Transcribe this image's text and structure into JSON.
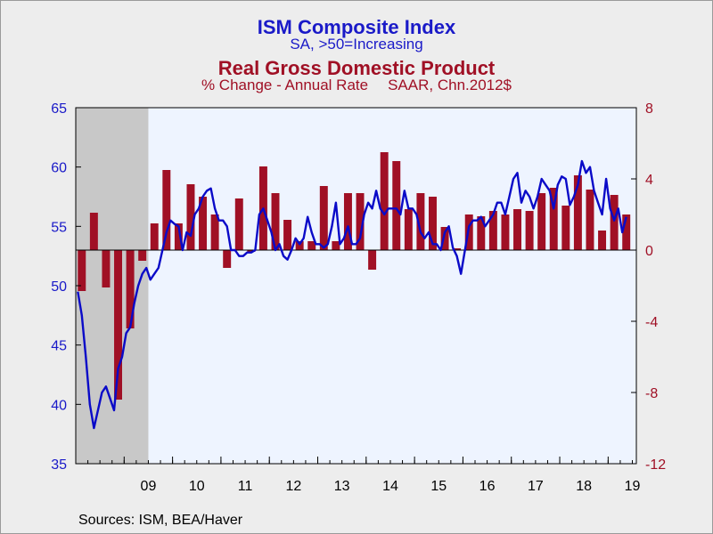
{
  "titles": {
    "ism_title": "ISM Composite Index",
    "ism_subtitle": "SA, >50=Increasing",
    "gdp_title": "Real Gross Domestic Product",
    "gdp_subtitle_left": "% Change - Annual Rate",
    "gdp_subtitle_right": "SAAR, Chn.2012$"
  },
  "source": "Sources:  ISM, BEA/Haver",
  "colors": {
    "ism": "#0a0ac8",
    "gdp": "#a01025",
    "left_axis": "#1a1ac8",
    "right_axis": "#a01025",
    "plot_bg": "#eef4ff",
    "recession": "#c8c8c8"
  },
  "chart_data": {
    "type": "bar",
    "combo": "bar + line (dual axis)",
    "x_tick_labels": [
      "09",
      "10",
      "11",
      "12",
      "13",
      "14",
      "15",
      "16",
      "17",
      "18",
      "19"
    ],
    "x_range": [
      2008.0,
      2019.583
    ],
    "left_axis": {
      "series": "ISM Composite Index",
      "ticks": [
        35,
        40,
        45,
        50,
        55,
        60,
        65
      ],
      "range": [
        35,
        65
      ]
    },
    "right_axis": {
      "series": "Real Gross Domestic Product",
      "ticks": [
        -12,
        -8,
        -4,
        0,
        4,
        8
      ],
      "range": [
        -12,
        8
      ]
    },
    "recession": {
      "start": 2008.0,
      "end": 2009.5
    },
    "gdp_bars": {
      "name": "Real Gross Domestic Product",
      "quarters": [
        "2008Q1",
        "2008Q2",
        "2008Q3",
        "2008Q4",
        "2009Q1",
        "2009Q2",
        "2009Q3",
        "2009Q4",
        "2010Q1",
        "2010Q2",
        "2010Q3",
        "2010Q4",
        "2011Q1",
        "2011Q2",
        "2011Q3",
        "2011Q4",
        "2012Q1",
        "2012Q2",
        "2012Q3",
        "2012Q4",
        "2013Q1",
        "2013Q2",
        "2013Q3",
        "2013Q4",
        "2014Q1",
        "2014Q2",
        "2014Q3",
        "2014Q4",
        "2015Q1",
        "2015Q2",
        "2015Q3",
        "2015Q4",
        "2016Q1",
        "2016Q2",
        "2016Q3",
        "2016Q4",
        "2017Q1",
        "2017Q2",
        "2017Q3",
        "2017Q4",
        "2018Q1",
        "2018Q2",
        "2018Q3",
        "2018Q4",
        "2019Q1",
        "2019Q2"
      ],
      "values": [
        -2.3,
        2.1,
        -2.1,
        -8.4,
        -4.4,
        -0.6,
        1.5,
        4.5,
        1.5,
        3.7,
        3.0,
        2.0,
        -1.0,
        2.9,
        -0.1,
        4.7,
        3.2,
        1.7,
        0.5,
        0.5,
        3.6,
        0.5,
        3.2,
        3.2,
        -1.1,
        5.5,
        5.0,
        2.3,
        3.2,
        3.0,
        1.3,
        0.1,
        2.0,
        1.9,
        2.2,
        2.0,
        2.3,
        2.2,
        3.2,
        3.5,
        2.5,
        4.2,
        3.4,
        1.1,
        3.1,
        2.0
      ]
    },
    "ism_line": {
      "name": "ISM Composite Index",
      "start": "2008-01",
      "values": [
        49.5,
        47.5,
        44.0,
        40.0,
        38.0,
        39.5,
        41.0,
        41.5,
        40.5,
        39.5,
        43.0,
        44.0,
        46.0,
        46.5,
        48.5,
        50.0,
        51.0,
        51.5,
        50.5,
        51.0,
        51.5,
        53.0,
        54.5,
        55.5,
        55.2,
        55.0,
        53.0,
        54.5,
        54.2,
        56.0,
        56.5,
        57.5,
        58.0,
        58.2,
        56.5,
        55.5,
        55.5,
        55.0,
        53.0,
        53.0,
        52.5,
        52.5,
        52.8,
        52.8,
        53.0,
        56.0,
        56.5,
        55.5,
        54.5,
        53.0,
        53.5,
        52.5,
        52.2,
        53.0,
        54.0,
        53.5,
        54.0,
        55.8,
        54.5,
        53.5,
        53.5,
        53.2,
        53.5,
        55.0,
        57.0,
        53.5,
        54.0,
        55.0,
        53.5,
        53.5,
        54.0,
        56.0,
        57.0,
        56.5,
        58.0,
        56.5,
        56.0,
        56.5,
        56.5,
        56.5,
        56.0,
        58.0,
        56.5,
        56.5,
        56.0,
        54.5,
        54.0,
        54.5,
        53.5,
        53.5,
        53.0,
        54.5,
        55.0,
        53.2,
        52.5,
        51.0,
        53.0,
        55.0,
        55.5,
        55.5,
        55.8,
        55.0,
        55.5,
        56.0,
        57.0,
        57.0,
        56.0,
        57.5,
        59.0,
        59.5,
        57.0,
        58.0,
        57.5,
        56.5,
        57.5,
        59.0,
        58.5,
        58.0,
        56.5,
        58.5,
        59.2,
        59.0,
        56.8,
        57.5,
        58.5,
        60.5,
        59.5,
        60.0,
        58.0,
        57.0,
        56.0,
        59.0,
        56.5,
        55.5,
        56.5,
        54.5,
        55.8
      ]
    }
  }
}
